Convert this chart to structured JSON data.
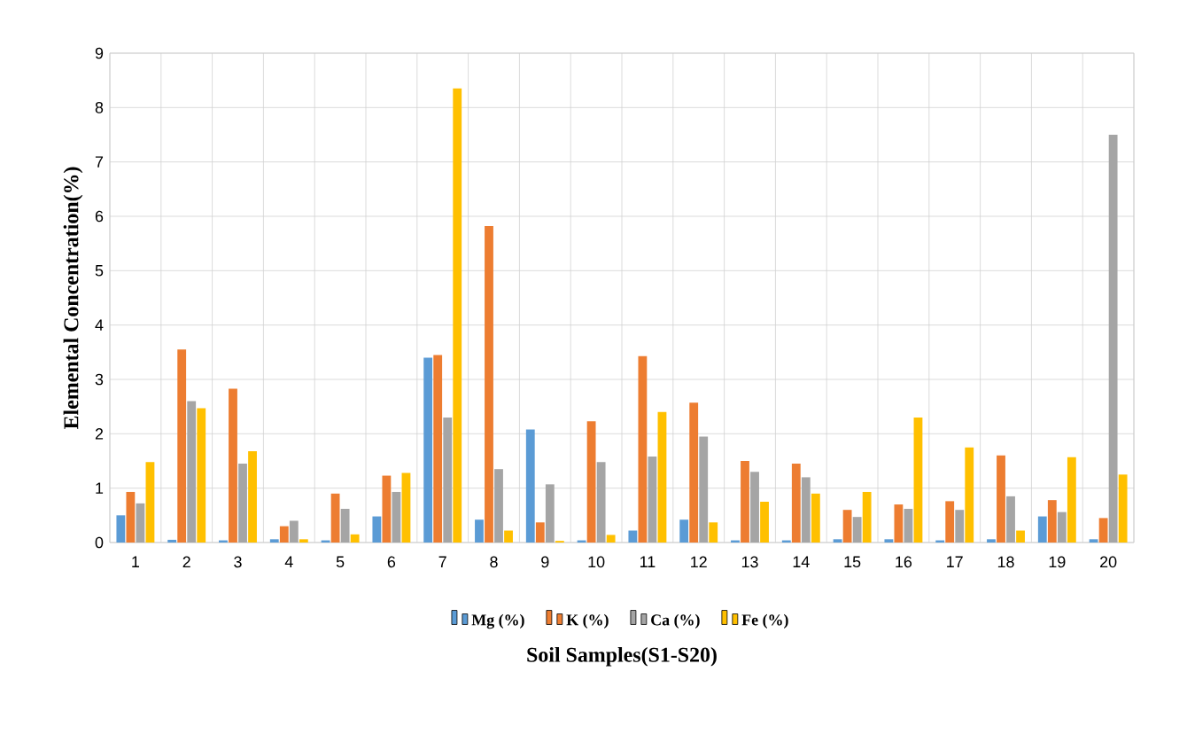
{
  "chart_data": {
    "type": "bar",
    "xlabel": "Soil Samples(S1-S20)",
    "ylabel": "Elemental Concentration(%)",
    "categories": [
      "1",
      "2",
      "3",
      "4",
      "5",
      "6",
      "7",
      "8",
      "9",
      "10",
      "11",
      "12",
      "13",
      "14",
      "15",
      "16",
      "17",
      "18",
      "19",
      "20"
    ],
    "series": [
      {
        "name": "Mg (%)",
        "color": "#5b9bd5",
        "values": [
          0.5,
          0.05,
          0.04,
          0.06,
          0.04,
          0.48,
          3.4,
          0.42,
          2.08,
          0.04,
          0.22,
          0.42,
          0.04,
          0.04,
          0.06,
          0.06,
          0.04,
          0.06,
          0.48,
          0.06
        ]
      },
      {
        "name": "K (%)",
        "color": "#ed7d31",
        "values": [
          0.93,
          3.55,
          2.83,
          0.3,
          0.9,
          1.23,
          3.45,
          5.82,
          0.37,
          2.23,
          3.43,
          2.57,
          1.5,
          1.45,
          0.6,
          0.7,
          0.76,
          1.6,
          0.78,
          0.45
        ]
      },
      {
        "name": "Ca (%)",
        "color": "#a5a5a5",
        "values": [
          0.72,
          2.6,
          1.45,
          0.4,
          0.62,
          0.93,
          2.3,
          1.35,
          1.07,
          1.48,
          1.58,
          1.95,
          1.3,
          1.2,
          0.47,
          0.62,
          0.6,
          0.85,
          0.56,
          7.5
        ]
      },
      {
        "name": "Fe (%)",
        "color": "#ffc000",
        "values": [
          1.48,
          2.47,
          1.68,
          0.06,
          0.15,
          1.28,
          8.35,
          0.22,
          0.03,
          0.14,
          2.4,
          0.37,
          0.75,
          0.9,
          0.93,
          2.3,
          1.75,
          0.22,
          1.57,
          1.25
        ]
      }
    ],
    "ylim": [
      0,
      9
    ],
    "yticks": [
      0,
      1,
      2,
      3,
      4,
      5,
      6,
      7,
      8,
      9
    ],
    "grid": true,
    "legend": "bottom"
  }
}
